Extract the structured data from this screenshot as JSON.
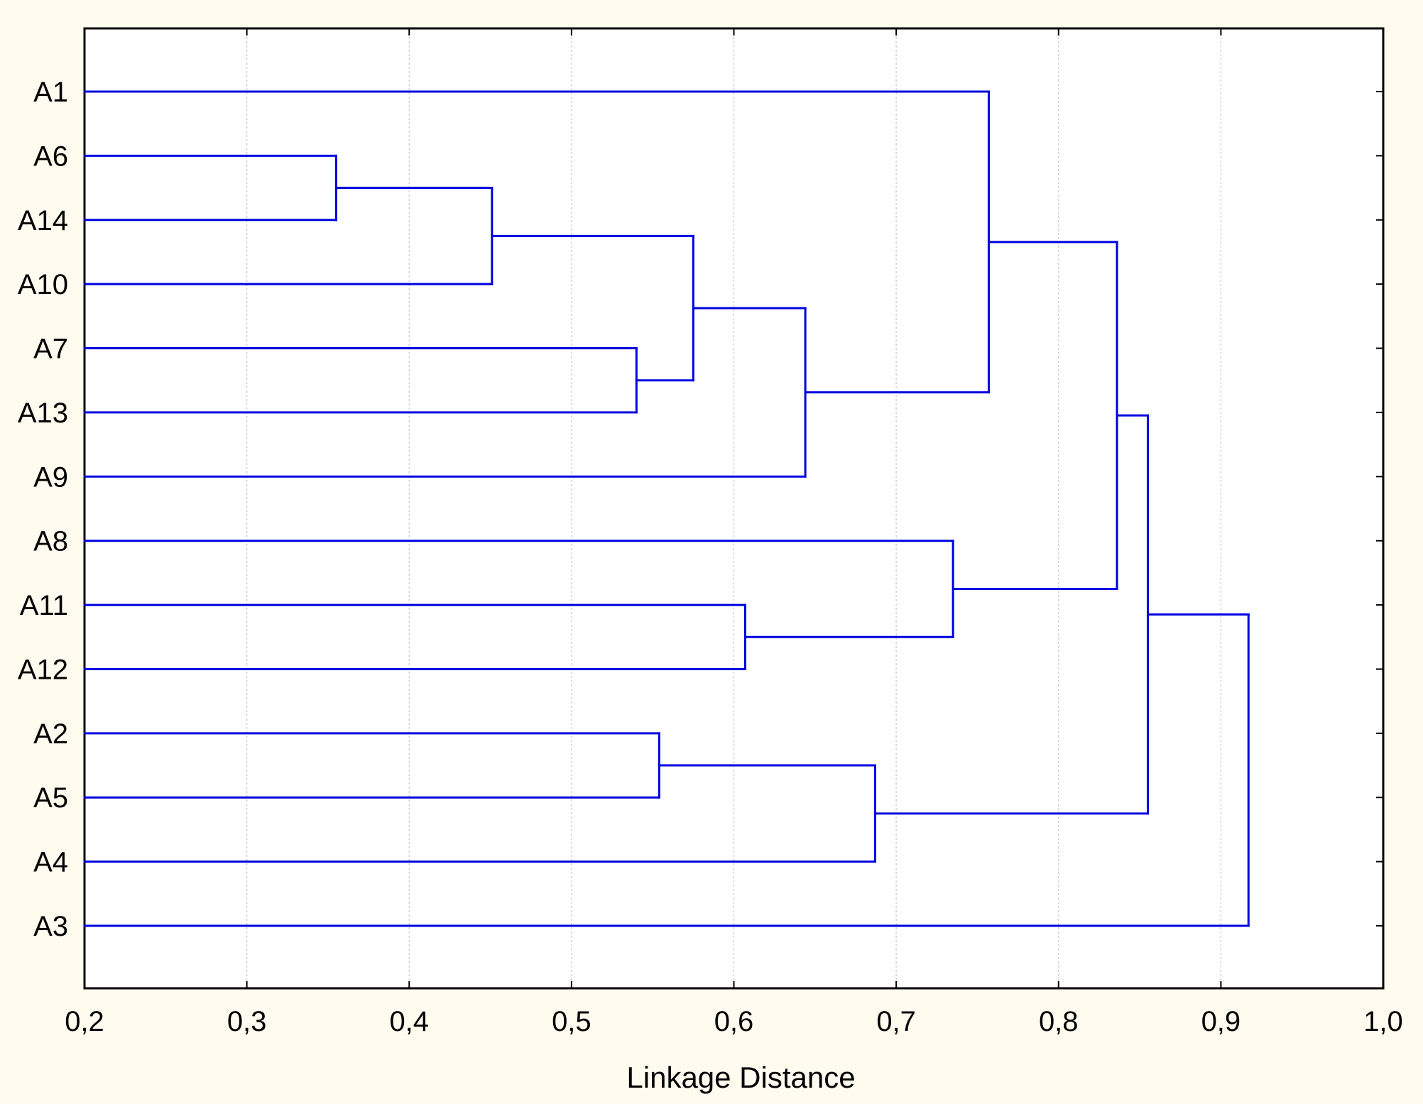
{
  "chart_data": {
    "type": "dendrogram",
    "orientation": "horizontal",
    "xlabel": "Linkage Distance",
    "xlim": [
      0.2,
      1.0
    ],
    "x_ticks": [
      0.2,
      0.3,
      0.4,
      0.5,
      0.6,
      0.7,
      0.8,
      0.9,
      1.0
    ],
    "x_tick_labels": [
      "0,2",
      "0,3",
      "0,4",
      "0,5",
      "0,6",
      "0,7",
      "0,8",
      "0,9",
      "1,0"
    ],
    "grid": true,
    "leaves": [
      "A1",
      "A6",
      "A14",
      "A10",
      "A7",
      "A13",
      "A9",
      "A8",
      "A11",
      "A12",
      "A2",
      "A5",
      "A4",
      "A3"
    ],
    "merges": [
      {
        "left": "A6",
        "right": "A14",
        "distance": 0.355
      },
      {
        "left": "A6+A14",
        "right": "A10",
        "distance": 0.451
      },
      {
        "left": "A7",
        "right": "A13",
        "distance": 0.54
      },
      {
        "left": "A2",
        "right": "A5",
        "distance": 0.554
      },
      {
        "left": "A6+A14+A10",
        "right": "A7+A13",
        "distance": 0.575
      },
      {
        "left": "A11",
        "right": "A12",
        "distance": 0.607
      },
      {
        "left": "A6+A14+A10+A7+A13",
        "right": "A9",
        "distance": 0.644
      },
      {
        "left": "A2+A5",
        "right": "A4",
        "distance": 0.687
      },
      {
        "left": "A8",
        "right": "A11+A12",
        "distance": 0.735
      },
      {
        "left": "A1",
        "right": "A6+A14+A10+A7+A13+A9",
        "distance": 0.757
      },
      {
        "left": "A1+A6+A14+A10+A7+A13+A9",
        "right": "A8+A11+A12",
        "distance": 0.836
      },
      {
        "left": "A1+A6+A14+A10+A7+A13+A9+A8+A11+A12",
        "right": "A2+A5+A4",
        "distance": 0.855
      },
      {
        "left": "A1+A6+A14+A10+A7+A13+A9+A8+A11+A12+A2+A5+A4",
        "right": "A3",
        "distance": 0.917
      }
    ],
    "colors": {
      "line": "#0000e0",
      "background": "#fffbef",
      "plot_background": "#ffffff",
      "grid": "#c8c8c8"
    }
  }
}
